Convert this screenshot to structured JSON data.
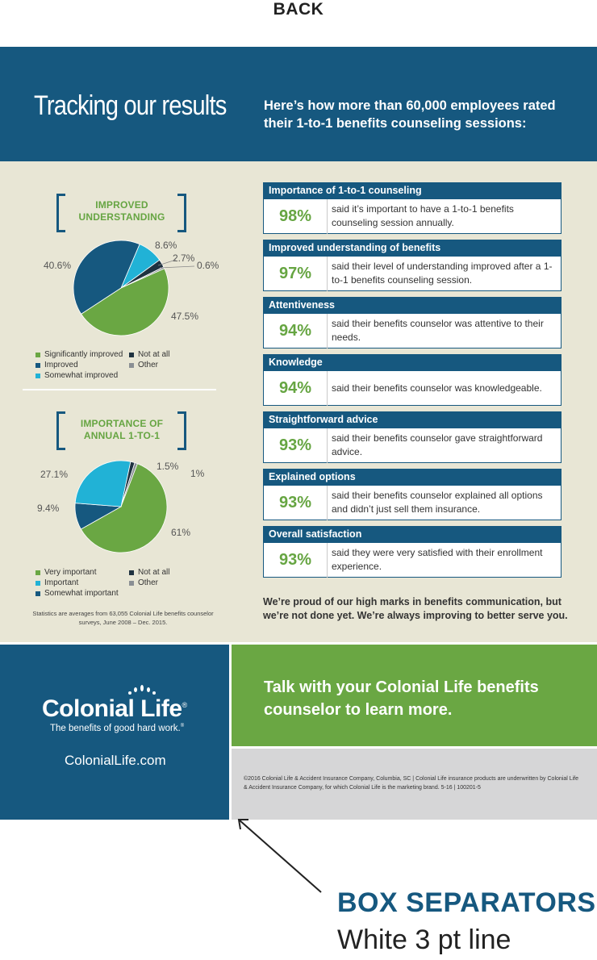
{
  "back_label": "BACK",
  "header": {
    "title": "Tracking our results",
    "subtitle": "Here’s how more than 60,000 employees rated their 1-to-1 benefits counseling sessions:"
  },
  "charts": [
    {
      "heading_line1": "IMPROVED",
      "heading_line2": "UNDERSTANDING",
      "slices": [
        {
          "label": "Significantly improved",
          "value": 47.5,
          "display": "47.5%",
          "color": "#6aa743"
        },
        {
          "label": "Improved",
          "value": 40.6,
          "display": "40.6%",
          "color": "#16587f"
        },
        {
          "label": "Somewhat improved",
          "value": 8.6,
          "display": "8.6%",
          "color": "#21b2d6"
        },
        {
          "label": "Not at all",
          "value": 2.7,
          "display": "2.7%",
          "color": "#1f3240"
        },
        {
          "label": "Other",
          "value": 0.6,
          "display": "0.6%",
          "color": "#8a8f94"
        }
      ]
    },
    {
      "heading_line1": "IMPORTANCE OF",
      "heading_line2": "ANNUAL 1-TO-1",
      "slices": [
        {
          "label": "Very important",
          "value": 61,
          "display": "61%",
          "color": "#6aa743"
        },
        {
          "label": "Somewhat important",
          "value": 9.4,
          "display": "9.4%",
          "color": "#16587f"
        },
        {
          "label": "Important",
          "value": 27.1,
          "display": "27.1%",
          "color": "#21b2d6"
        },
        {
          "label": "Not at all",
          "value": 1.5,
          "display": "1.5%",
          "color": "#1f3240"
        },
        {
          "label": "Other",
          "value": 1,
          "display": "1%",
          "color": "#8a8f94"
        }
      ]
    }
  ],
  "footnote": "Statistics are averages from 63,055 Colonial Life benefits counselor surveys, June 2008 – Dec. 2015.",
  "stats": [
    {
      "title": "Importance of 1-to-1 counseling",
      "pct": "98%",
      "desc": "said it’s important to have a 1-to-1 benefits counseling session annually."
    },
    {
      "title": "Improved understanding of benefits",
      "pct": "97%",
      "desc": "said their level of understanding improved after a 1-to-1 benefits counseling session."
    },
    {
      "title": "Attentiveness",
      "pct": "94%",
      "desc": "said their benefits counselor was attentive to their needs."
    },
    {
      "title": "Knowledge",
      "pct": "94%",
      "desc": "said their benefits counselor was knowledgeable."
    },
    {
      "title": "Straightforward advice",
      "pct": "93%",
      "desc": "said their benefits counselor gave straightforward advice."
    },
    {
      "title": "Explained options",
      "pct": "93%",
      "desc": "said their benefits counselor explained all options and didn’t just sell them insurance."
    },
    {
      "title": "Overall satisfaction",
      "pct": "93%",
      "desc": "said they were very satisfied with their enrollment experience."
    }
  ],
  "proud": "We’re proud of our high marks in benefits communication, but we’re not done yet. We’re always improving to better serve you.",
  "footer": {
    "logo_name": "Colonial Life",
    "logo_reg": "®",
    "tagline": "The benefits of good hard work.",
    "tagline_tm": "®",
    "site": "ColonialLife.com",
    "talk": "Talk with your Colonial Life benefits counselor to learn more.",
    "legal": "©2016 Colonial Life & Accident Insurance Company, Columbia, SC | Colonial Life insurance products are underwritten by Colonial Life & Accident Insurance Company, for which Colonial Life is the marketing brand.   5-16  |  100201-5"
  },
  "annotation": {
    "title": "BOX SEPARATORS",
    "subtitle": "White 3 pt line"
  },
  "colors": {
    "navy": "#16587f",
    "green": "#6aa743",
    "beige": "#e8e6d5",
    "gray": "#d6d6d7"
  }
}
